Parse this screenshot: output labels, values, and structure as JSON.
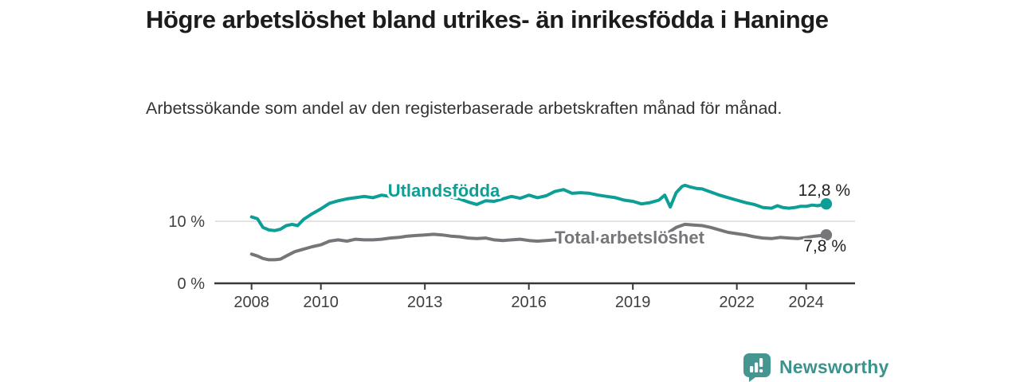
{
  "chart_data": {
    "type": "line",
    "title": "Högre arbetslöshet bland utrikes- än inrikesfödda i Haninge",
    "subtitle": "Arbetssökande som andel av den registerbaserade arbetskraften månad för månad.",
    "grid": "horizontal-only",
    "x_axis": {
      "ticks": [
        2008,
        2010,
        2013,
        2016,
        2019,
        2022,
        2024
      ],
      "range": [
        2006.95,
        2025.41
      ]
    },
    "y_axis": {
      "ticks": [
        {
          "value": 0,
          "label": "0 %"
        },
        {
          "value": 10,
          "label": "10 %"
        }
      ],
      "range": [
        0,
        17.4
      ]
    },
    "series": [
      {
        "name": "Utlandsfödda",
        "color": "#0d9e96",
        "end_label": "12,8 %",
        "last_value": 12.8,
        "points": [
          [
            2008.0,
            10.7
          ],
          [
            2008.17,
            10.4
          ],
          [
            2008.33,
            9.0
          ],
          [
            2008.5,
            8.6
          ],
          [
            2008.67,
            8.5
          ],
          [
            2008.83,
            8.7
          ],
          [
            2009.0,
            9.3
          ],
          [
            2009.17,
            9.5
          ],
          [
            2009.33,
            9.3
          ],
          [
            2009.5,
            10.3
          ],
          [
            2009.75,
            11.2
          ],
          [
            2010.0,
            12.0
          ],
          [
            2010.25,
            12.9
          ],
          [
            2010.5,
            13.3
          ],
          [
            2010.75,
            13.6
          ],
          [
            2011.0,
            13.8
          ],
          [
            2011.25,
            14.0
          ],
          [
            2011.5,
            13.8
          ],
          [
            2011.75,
            14.2
          ],
          [
            2012.0,
            14.0
          ],
          [
            2012.25,
            14.3
          ],
          [
            2012.5,
            14.2
          ],
          [
            2012.75,
            14.2
          ],
          [
            2013.0,
            14.3
          ],
          [
            2013.25,
            14.2
          ],
          [
            2013.5,
            14.0
          ],
          [
            2013.75,
            13.9
          ],
          [
            2014.0,
            13.6
          ],
          [
            2014.25,
            13.1
          ],
          [
            2014.5,
            12.7
          ],
          [
            2014.75,
            13.3
          ],
          [
            2015.0,
            13.2
          ],
          [
            2015.25,
            13.6
          ],
          [
            2015.5,
            14.0
          ],
          [
            2015.75,
            13.7
          ],
          [
            2016.0,
            14.2
          ],
          [
            2016.25,
            13.8
          ],
          [
            2016.5,
            14.1
          ],
          [
            2016.75,
            14.8
          ],
          [
            2017.0,
            15.1
          ],
          [
            2017.25,
            14.5
          ],
          [
            2017.5,
            14.6
          ],
          [
            2017.75,
            14.5
          ],
          [
            2018.0,
            14.2
          ],
          [
            2018.25,
            14.0
          ],
          [
            2018.5,
            13.8
          ],
          [
            2018.75,
            13.4
          ],
          [
            2019.0,
            13.2
          ],
          [
            2019.25,
            12.8
          ],
          [
            2019.5,
            13.0
          ],
          [
            2019.75,
            13.4
          ],
          [
            2019.92,
            14.2
          ],
          [
            2020.08,
            12.3
          ],
          [
            2020.25,
            14.6
          ],
          [
            2020.42,
            15.6
          ],
          [
            2020.5,
            15.8
          ],
          [
            2020.67,
            15.5
          ],
          [
            2020.83,
            15.3
          ],
          [
            2021.0,
            15.2
          ],
          [
            2021.25,
            14.7
          ],
          [
            2021.5,
            14.2
          ],
          [
            2021.75,
            13.8
          ],
          [
            2022.0,
            13.4
          ],
          [
            2022.25,
            13.0
          ],
          [
            2022.5,
            12.7
          ],
          [
            2022.75,
            12.2
          ],
          [
            2023.0,
            12.1
          ],
          [
            2023.17,
            12.5
          ],
          [
            2023.33,
            12.2
          ],
          [
            2023.5,
            12.1
          ],
          [
            2023.67,
            12.2
          ],
          [
            2023.83,
            12.4
          ],
          [
            2024.0,
            12.4
          ],
          [
            2024.17,
            12.6
          ],
          [
            2024.33,
            12.5
          ],
          [
            2024.58,
            12.8
          ]
        ]
      },
      {
        "name": "Total arbetslöshet",
        "color": "#76767a",
        "end_label": "7,8 %",
        "last_value": 7.8,
        "points": [
          [
            2008.0,
            4.7
          ],
          [
            2008.17,
            4.4
          ],
          [
            2008.33,
            4.0
          ],
          [
            2008.5,
            3.8
          ],
          [
            2008.67,
            3.8
          ],
          [
            2008.83,
            3.9
          ],
          [
            2009.0,
            4.4
          ],
          [
            2009.25,
            5.1
          ],
          [
            2009.5,
            5.5
          ],
          [
            2009.75,
            5.9
          ],
          [
            2010.0,
            6.2
          ],
          [
            2010.25,
            6.8
          ],
          [
            2010.5,
            7.0
          ],
          [
            2010.75,
            6.8
          ],
          [
            2011.0,
            7.1
          ],
          [
            2011.25,
            7.0
          ],
          [
            2011.5,
            7.0
          ],
          [
            2011.75,
            7.1
          ],
          [
            2012.0,
            7.3
          ],
          [
            2012.25,
            7.4
          ],
          [
            2012.5,
            7.6
          ],
          [
            2012.75,
            7.7
          ],
          [
            2013.0,
            7.8
          ],
          [
            2013.25,
            7.9
          ],
          [
            2013.5,
            7.8
          ],
          [
            2013.75,
            7.6
          ],
          [
            2014.0,
            7.5
          ],
          [
            2014.25,
            7.3
          ],
          [
            2014.5,
            7.2
          ],
          [
            2014.75,
            7.3
          ],
          [
            2015.0,
            7.0
          ],
          [
            2015.25,
            6.9
          ],
          [
            2015.5,
            7.0
          ],
          [
            2015.75,
            7.1
          ],
          [
            2016.0,
            6.9
          ],
          [
            2016.25,
            6.8
          ],
          [
            2016.5,
            6.9
          ],
          [
            2016.75,
            7.0
          ],
          [
            2017.0,
            6.9
          ],
          [
            2017.25,
            7.0
          ],
          [
            2017.5,
            7.1
          ],
          [
            2017.75,
            7.0
          ],
          [
            2018.0,
            7.1
          ],
          [
            2018.25,
            7.0
          ],
          [
            2018.5,
            7.2
          ],
          [
            2018.75,
            7.3
          ],
          [
            2019.0,
            7.5
          ],
          [
            2019.25,
            7.4
          ],
          [
            2019.5,
            7.6
          ],
          [
            2019.75,
            7.8
          ],
          [
            2020.0,
            8.1
          ],
          [
            2020.25,
            9.0
          ],
          [
            2020.5,
            9.5
          ],
          [
            2020.75,
            9.4
          ],
          [
            2021.0,
            9.3
          ],
          [
            2021.25,
            9.0
          ],
          [
            2021.5,
            8.6
          ],
          [
            2021.75,
            8.2
          ],
          [
            2022.0,
            8.0
          ],
          [
            2022.25,
            7.8
          ],
          [
            2022.5,
            7.5
          ],
          [
            2022.75,
            7.3
          ],
          [
            2023.0,
            7.2
          ],
          [
            2023.25,
            7.4
          ],
          [
            2023.5,
            7.3
          ],
          [
            2023.75,
            7.2
          ],
          [
            2024.0,
            7.4
          ],
          [
            2024.25,
            7.6
          ],
          [
            2024.58,
            7.8
          ]
        ]
      }
    ],
    "colors": {
      "axis": "#383838",
      "gridline": "#dcdcdc",
      "tick_text": "#3f3f3f",
      "value_text": "#222222"
    }
  },
  "footer": {
    "brand": "Newsworthy",
    "brand_color": "#3b938d",
    "logo_icon": "bar-chart-speech-bubble-icon"
  }
}
